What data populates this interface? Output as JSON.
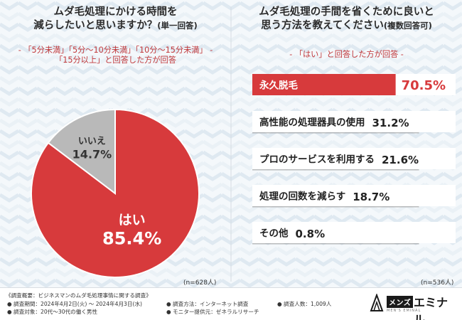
{
  "left": {
    "title_line1": "ムダ毛処理にかける時間を",
    "title_line2_main": "減らしたいと思いますか？",
    "title_line2_paren": "(単一回答)",
    "sub_line1": "- 「5分未満」「5分〜10分未満」「10分〜15分未満」 -",
    "sub_line2": "「15分以上」と回答した方が回答",
    "n_label": "(n=628人)"
  },
  "right": {
    "title_line1": "ムダ毛処理の手間を省くために良いと",
    "title_line2_main": "思う方法を教えてください",
    "title_line2_paren": "(複数回答可)",
    "sub": "- 「はい」と回答した方が回答 -",
    "n_label": "(n=536人)"
  },
  "footer": {
    "title": "《調査概要：ビジネスマンのムダ毛処理事情に関する調査》",
    "period": "● 調査期間：2024年4月2日(火) 〜 2024年4月3日(水)",
    "target": "● 調査対象：20代〜30代の働く男性",
    "method": "● 調査方法：インターネット調査",
    "monitor": "● モニター提供元：ゼネラルリサーチ",
    "count": "● 調査人数：1,009人"
  },
  "logo": {
    "mens": "メンズ",
    "brand": "エミナル",
    "sub": "MEN'S EMINAL"
  },
  "colors": {
    "accent": "#d73a3c",
    "gray": "#b9b9b9",
    "track": "#ffffff"
  },
  "chart_data": [
    {
      "type": "pie",
      "categories": [
        "はい",
        "いいえ"
      ],
      "values": [
        85.4,
        14.7
      ],
      "unit": "%",
      "colors": [
        "#d73a3c",
        "#b9b9b9"
      ]
    },
    {
      "type": "bar",
      "orientation": "horizontal",
      "categories": [
        "永久脱毛",
        "高性能の処理器具の使用",
        "プロのサービスを利用する",
        "処理の回数を減らす",
        "その他"
      ],
      "values": [
        70.5,
        31.2,
        21.6,
        18.7,
        0.8
      ],
      "unit": "%",
      "highlight_index": 0
    }
  ]
}
